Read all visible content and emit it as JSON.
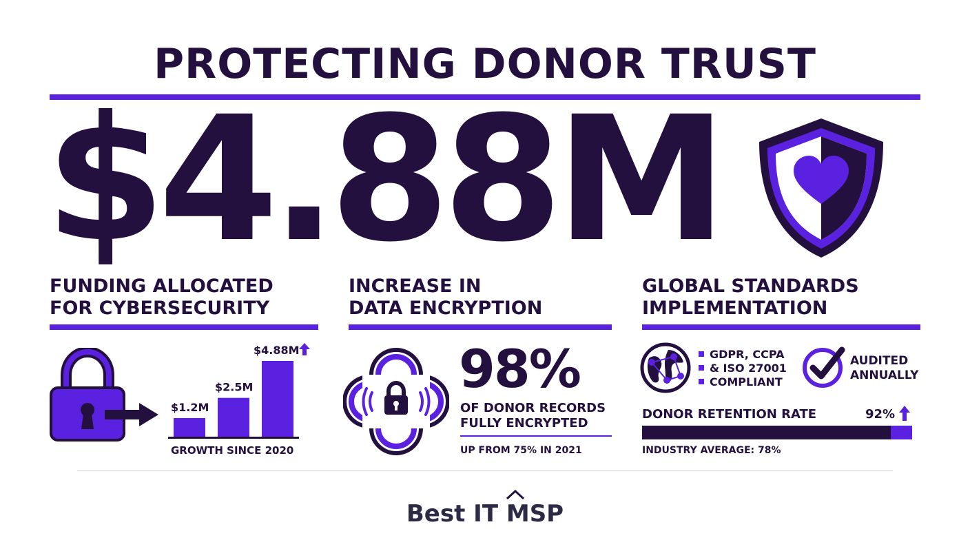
{
  "title": "PROTECTING DONOR TRUST",
  "hero_value": "$4.88M",
  "columns": [
    {
      "heading_line1": "FUNDING ALLOCATED",
      "heading_line2": "FOR CYBERSECURITY",
      "caption": "GROWTH SINCE 2020"
    },
    {
      "heading_line1": "INCREASE IN",
      "heading_line2": "DATA ENCRYPTION",
      "stat": "98%",
      "stat_line1": "OF DONOR RECORDS",
      "stat_line2": "FULLY ENCRYPTED",
      "footnote": "UP FROM 75% IN 2021"
    },
    {
      "heading_line1": "GLOBAL STANDARDS",
      "heading_line2": "IMPLEMENTATION",
      "compliance": [
        "GDPR, CCPA",
        "& ISO 27001",
        "COMPLIANT"
      ],
      "audited_line1": "AUDITED",
      "audited_line2": "ANNUALLY",
      "retention_label": "DONOR RETENTION RATE",
      "retention_value": "92%",
      "retention_fraction": 0.92,
      "industry_note": "INDUSTRY AVERAGE: 78%"
    }
  ],
  "chart_data": {
    "type": "bar",
    "categories": [
      "",
      "",
      ""
    ],
    "values": [
      1.2,
      2.5,
      4.88
    ],
    "data_labels": [
      "$1.2M",
      "$2.5M",
      "$4.88M"
    ],
    "title": "",
    "xlabel": "GROWTH SINCE 2020",
    "ylabel": "",
    "ylim": [
      0,
      4.88
    ]
  },
  "footer": {
    "brand": "Best IT MSP"
  },
  "colors": {
    "dark": "#23103f",
    "accent": "#5b21e0"
  },
  "icons": [
    "shield-heart-icon",
    "padlock-icon",
    "arrow-right-icon",
    "arrow-up-icon",
    "encrypted-lock-icon",
    "globe-network-icon",
    "checkmark-circle-icon",
    "chevron-up-icon"
  ]
}
